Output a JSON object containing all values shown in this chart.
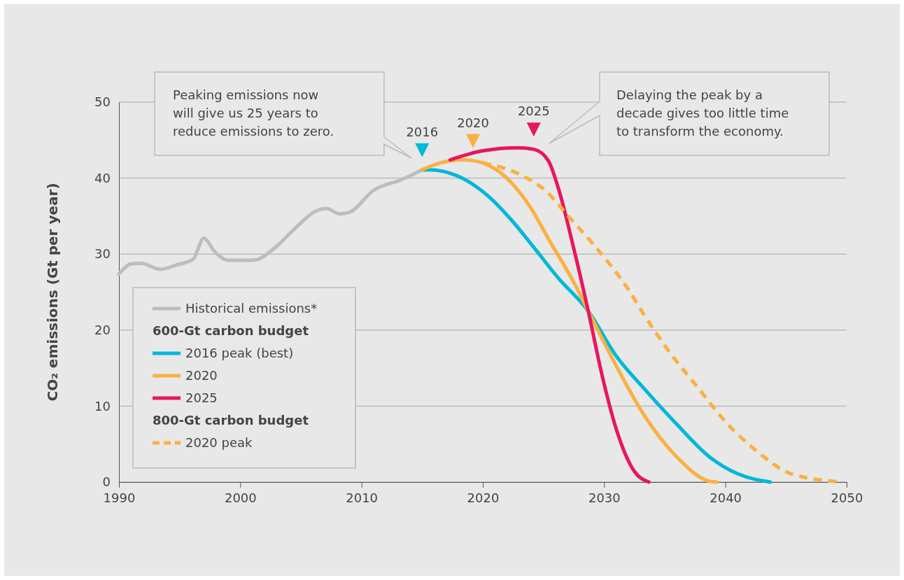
{
  "chart_data": {
    "type": "line",
    "ylabel": "CO₂ emissions (Gt per year)",
    "xlim": [
      1990,
      2050
    ],
    "xticks": [
      1990,
      2000,
      2010,
      2020,
      2030,
      2040,
      2050
    ],
    "ylim": [
      0,
      50
    ],
    "yticks": [
      0,
      10,
      20,
      30,
      40,
      50
    ],
    "grid": "y",
    "legend": "bottom left",
    "line_style": "solid",
    "marker": "none",
    "series": [
      {
        "name": "Historical emissions*",
        "color": "#bdbdbd",
        "x": [
          1990,
          1991,
          1991.8,
          1993.4,
          1994.8,
          1996.1,
          1997,
          1997.9,
          1999,
          2001.1,
          2002.9,
          2004.4,
          2006.3,
          2007.1,
          2008.2,
          2009,
          2011,
          2013.3,
          2015
        ],
        "values": [
          27.4,
          28.7,
          28.8,
          28.0,
          28.6,
          29.3,
          32.1,
          30.3,
          29.2,
          29.2,
          30.9,
          33.2,
          35.7,
          36.0,
          35.3,
          35.5,
          38.4,
          39.8,
          41.1
        ]
      },
      {
        "name": "2016 peak (best)",
        "color": "#00b8d9",
        "x": [
          2015,
          2015.6,
          2017.9,
          2020.4,
          2022.3,
          2024.2,
          2026.2,
          2028.7,
          2031,
          2033.3,
          2036,
          2038.7,
          2041,
          2043.7
        ],
        "values": [
          41.1,
          41.1,
          40.3,
          37.7,
          34.6,
          30.9,
          26.9,
          22.5,
          16.6,
          12.3,
          7.6,
          3.3,
          1.1,
          0
        ]
      },
      {
        "name": "2020",
        "color": "#fbb040",
        "x": [
          2015,
          2016.5,
          2018.3,
          2019.2,
          2020,
          2021.7,
          2023.7,
          2025.6,
          2027.5,
          2028.7,
          2031,
          2033.3,
          2036,
          2038.7,
          2039.3
        ],
        "values": [
          41.1,
          42.0,
          42.4,
          42.3,
          42.0,
          40.4,
          36.7,
          31.5,
          26.3,
          22.5,
          15.3,
          8.8,
          3.3,
          0.1,
          0
        ]
      },
      {
        "name": "2025",
        "color": "#e8175d",
        "x": [
          2017.3,
          2020,
          2022.9,
          2024.2,
          2025.4,
          2026.3,
          2027.1,
          2027.9,
          2028.7,
          2029.8,
          2031,
          2032.5,
          2033.7
        ],
        "values": [
          42.4,
          43.6,
          44.0,
          43.8,
          42.3,
          38.3,
          33.4,
          28.1,
          22.5,
          14.3,
          7.0,
          1.4,
          0
        ]
      },
      {
        "name": "2020 peak",
        "color": "#fbb040",
        "line_style": "dashed",
        "x": [
          2020,
          2022.9,
          2025.2,
          2027.1,
          2029,
          2032.1,
          2033.3,
          2035.4,
          2037.7,
          2040.2,
          2042.5,
          2045.4,
          2049.6
        ],
        "values": [
          42.0,
          40.6,
          38.3,
          34.9,
          31.5,
          25.1,
          22.0,
          17.1,
          12.5,
          7.6,
          4.2,
          1.1,
          0
        ]
      }
    ],
    "annotations": [
      "Peaking emissions now\nwill give us 25 years to\nreduce emissions to zero.",
      "Delaying the peak by a\ndecade gives too little time\nto transform the economy.",
      "600-Gt carbon budget",
      "800-Gt carbon budget",
      {
        "text": "2016",
        "x": 2015,
        "y": 41.1
      },
      {
        "text": "2020",
        "x": 2019.2,
        "y": 42.3
      },
      {
        "text": "2025",
        "x": 2024.2,
        "y": 43.8
      }
    ]
  }
}
